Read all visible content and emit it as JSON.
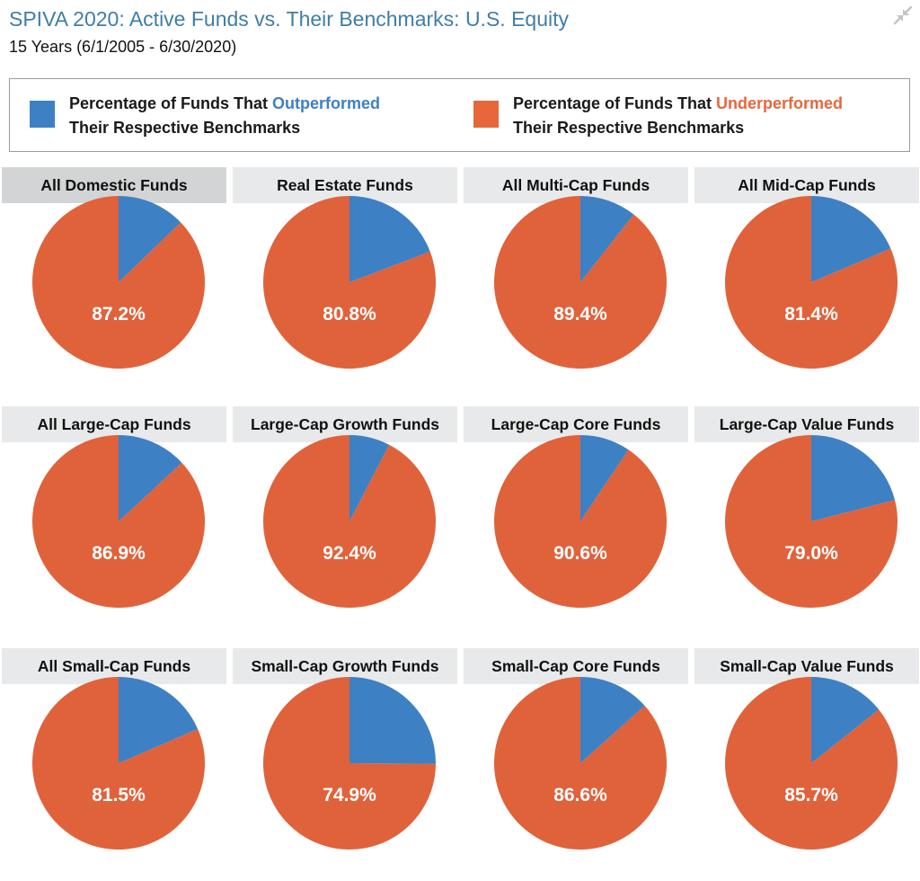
{
  "header": {
    "title": "SPIVA 2020: Active Funds vs. Their Benchmarks: U.S. Equity",
    "subtitle": "15 Years (6/1/2005 - 6/30/2020)",
    "collapse_icon": "collapse-arrows-icon"
  },
  "legend": {
    "outperformed": {
      "text_before": "Percentage of Funds That ",
      "highlight": "Outperformed",
      "line2": "Their Respective Benchmarks",
      "color": "#3d80c4"
    },
    "underperformed": {
      "text_before": "Percentage of Funds That ",
      "highlight": "Underperformed",
      "line2": "Their Respective Benchmarks",
      "color": "#e7673a"
    }
  },
  "chart_data": {
    "type": "pie",
    "unit": "%",
    "series_names": [
      "Percentage of Funds That Outperformed Their Respective Benchmarks",
      "Percentage of Funds That Underperformed Their Respective Benchmarks"
    ],
    "colors": {
      "outperformed": "#3d80c4",
      "underperformed": "#e0623b"
    },
    "panels": [
      {
        "title": "All Domestic Funds",
        "underperformed": 87.2,
        "outperformed": 12.8,
        "label": "87.2%",
        "active": true
      },
      {
        "title": "Real Estate Funds",
        "underperformed": 80.8,
        "outperformed": 19.2,
        "label": "80.8%"
      },
      {
        "title": "All Multi-Cap Funds",
        "underperformed": 89.4,
        "outperformed": 10.6,
        "label": "89.4%"
      },
      {
        "title": "All Mid-Cap Funds",
        "underperformed": 81.4,
        "outperformed": 18.6,
        "label": "81.4%"
      },
      {
        "title": "All Large-Cap Funds",
        "underperformed": 86.9,
        "outperformed": 13.1,
        "label": "86.9%"
      },
      {
        "title": "Large-Cap Growth Funds",
        "underperformed": 92.4,
        "outperformed": 7.6,
        "label": "92.4%"
      },
      {
        "title": "Large-Cap Core Funds",
        "underperformed": 90.6,
        "outperformed": 9.4,
        "label": "90.6%"
      },
      {
        "title": "Large-Cap Value Funds",
        "underperformed": 79.0,
        "outperformed": 21.0,
        "label": "79.0%"
      },
      {
        "title": "All Small-Cap Funds",
        "underperformed": 81.5,
        "outperformed": 18.5,
        "label": "81.5%"
      },
      {
        "title": "Small-Cap Growth Funds",
        "underperformed": 74.9,
        "outperformed": 25.1,
        "label": "74.9%"
      },
      {
        "title": "Small-Cap Core Funds",
        "underperformed": 86.6,
        "outperformed": 13.4,
        "label": "86.6%"
      },
      {
        "title": "Small-Cap Value Funds",
        "underperformed": 85.7,
        "outperformed": 14.3,
        "label": "85.7%"
      }
    ]
  }
}
